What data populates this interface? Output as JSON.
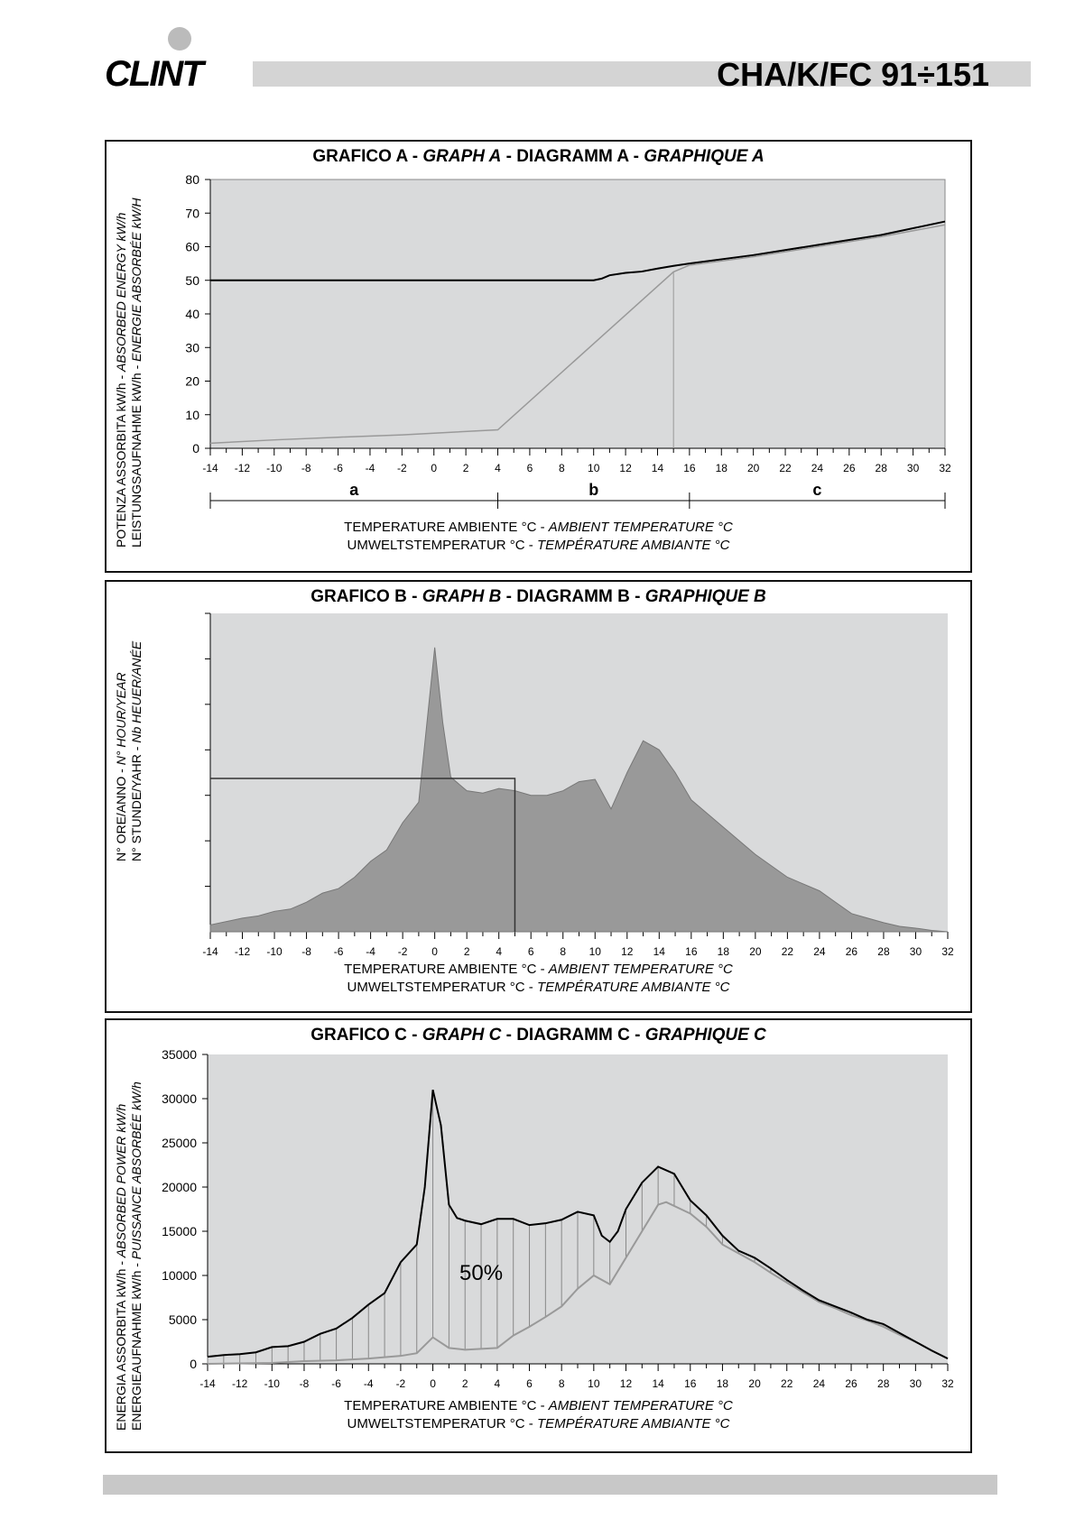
{
  "header": {
    "brand": "CLINT",
    "model": "CHA/K/FC   91÷151"
  },
  "graphA": {
    "title": [
      "GRAFICO A - ",
      "GRAPH A",
      " - DIAGRAMM  A - ",
      "GRAPHIQUE A"
    ],
    "ylabel1": [
      "POTENZA ASSORBITA kW/h - ",
      "ABSORBED ENERGY kW/h"
    ],
    "ylabel2": [
      "LEISTUNGSAUFNAHME kW/h - ",
      "ENERGIE ABSORBÉE kW/H"
    ],
    "xlabel1": [
      "TEMPERATURE AMBIENTE °C - ",
      "AMBIENT TEMPERATURE °C"
    ],
    "xlabel2": [
      "UMWELTSTEMPERATUR °C - ",
      "TEMPÉRATURE AMBIANTE °C"
    ]
  },
  "graphB": {
    "title": [
      "GRAFICO B - ",
      "GRAPH B",
      " - DIAGRAMM  B - ",
      "GRAPHIQUE B"
    ],
    "ylabel1": [
      "N° ORE/ANNO - ",
      "N° HOUR/YEAR"
    ],
    "ylabel2": [
      "N° STUNDE/YAHR - ",
      "Nb HEUER/ANÉE"
    ],
    "xlabel1": [
      "TEMPERATURE AMBIENTE °C - ",
      "AMBIENT TEMPERATURE °C"
    ],
    "xlabel2": [
      "UMWELTSTEMPERATUR °C - ",
      "TEMPÉRATURE AMBIANTE °C"
    ]
  },
  "graphC": {
    "title": [
      "GRAFICO C - ",
      "GRAPH C",
      " - DIAGRAMM  C - ",
      "GRAPHIQUE C"
    ],
    "ylabel1": [
      "ENERGIA ASSORBITA kW/h - ",
      "ABSORBED POWER kW/h"
    ],
    "ylabel2": [
      "ENERGIEAUFNAHME kW/h - ",
      "PUISSANCE ABSORBÉE kW/h"
    ],
    "xlabel1": [
      "TEMPERATURE AMBIENTE °C - ",
      "AMBIENT TEMPERATURE °C"
    ],
    "xlabel2": [
      "UMWELTSTEMPERATUR °C - ",
      "TEMPÉRATURE AMBIANTE °C"
    ]
  },
  "chart_data": [
    {
      "type": "line",
      "title": "GRAFICO A - GRAPH A - DIAGRAMM A - GRAPHIQUE A",
      "xlim": [
        -14,
        32
      ],
      "ylim": [
        0,
        80
      ],
      "xticks": [
        -14,
        -12,
        -10,
        -8,
        -6,
        -4,
        -2,
        0,
        2,
        4,
        6,
        8,
        10,
        12,
        14,
        16,
        18,
        20,
        22,
        24,
        26,
        28,
        30,
        32
      ],
      "yticks": [
        0,
        10,
        20,
        30,
        40,
        50,
        60,
        70,
        80
      ],
      "series": [
        {
          "name": "black",
          "color": "#000000",
          "points": [
            [
              -14,
              50
            ],
            [
              10,
              50
            ],
            [
              10.5,
              50.5
            ],
            [
              11,
              51.5
            ],
            [
              12,
              52.2
            ],
            [
              13,
              52.6
            ],
            [
              14,
              53.5
            ],
            [
              15,
              54.3
            ],
            [
              16,
              55
            ],
            [
              20,
              57.5
            ],
            [
              24,
              60.5
            ],
            [
              26,
              62
            ],
            [
              28,
              63.5
            ],
            [
              32,
              67.5
            ]
          ]
        },
        {
          "name": "gray",
          "color": "#999999",
          "points": [
            [
              -14,
              1.5
            ],
            [
              -10,
              2.5
            ],
            [
              -6,
              3.3
            ],
            [
              -2,
              4
            ],
            [
              0,
              4.5
            ],
            [
              4,
              5.5
            ],
            [
              15,
              52.5
            ],
            [
              16,
              54.5
            ],
            [
              20,
              57
            ],
            [
              24,
              60
            ],
            [
              28,
              63
            ],
            [
              32,
              66.5
            ]
          ]
        }
      ],
      "marker_x": 15,
      "ranges": [
        {
          "label": "a",
          "from": -14,
          "to": 4
        },
        {
          "label": "b",
          "from": 4,
          "to": 16
        },
        {
          "label": "c",
          "from": 16,
          "to": 32
        }
      ]
    },
    {
      "type": "area",
      "title": "GRAFICO B - GRAPH B - DIAGRAMM B - GRAPHIQUE B",
      "xlim": [
        -14,
        32
      ],
      "ylim": [
        0,
        7
      ],
      "xticks": [
        -14,
        -12,
        -10,
        -8,
        -6,
        -4,
        -2,
        0,
        2,
        4,
        6,
        8,
        10,
        12,
        14,
        16,
        18,
        20,
        22,
        24,
        26,
        28,
        30,
        32
      ],
      "yticks": [
        1,
        2,
        3,
        4,
        5,
        6,
        7
      ],
      "points": [
        [
          -14,
          0.15
        ],
        [
          -12,
          0.3
        ],
        [
          -11,
          0.35
        ],
        [
          -10,
          0.45
        ],
        [
          -9,
          0.5
        ],
        [
          -8,
          0.65
        ],
        [
          -7,
          0.85
        ],
        [
          -6,
          0.95
        ],
        [
          -5,
          1.2
        ],
        [
          -4,
          1.55
        ],
        [
          -3,
          1.8
        ],
        [
          -2,
          2.4
        ],
        [
          -1,
          2.85
        ],
        [
          0,
          6.25
        ],
        [
          0.5,
          4.6
        ],
        [
          1,
          3.4
        ],
        [
          2,
          3.1
        ],
        [
          3,
          3.05
        ],
        [
          4,
          3.15
        ],
        [
          5,
          3.1
        ],
        [
          6,
          3.0
        ],
        [
          7,
          3.0
        ],
        [
          8,
          3.1
        ],
        [
          9,
          3.3
        ],
        [
          10,
          3.35
        ],
        [
          11,
          2.7
        ],
        [
          12,
          3.5
        ],
        [
          13,
          4.2
        ],
        [
          14,
          4.0
        ],
        [
          15,
          3.5
        ],
        [
          16,
          2.9
        ],
        [
          17,
          2.6
        ],
        [
          18,
          2.3
        ],
        [
          19,
          2.0
        ],
        [
          20,
          1.7
        ],
        [
          21,
          1.45
        ],
        [
          22,
          1.2
        ],
        [
          23,
          1.05
        ],
        [
          24,
          0.9
        ],
        [
          25,
          0.65
        ],
        [
          26,
          0.4
        ],
        [
          27,
          0.3
        ],
        [
          28,
          0.2
        ],
        [
          29,
          0.12
        ],
        [
          30,
          0.08
        ],
        [
          31,
          0.03
        ],
        [
          32,
          0
        ]
      ],
      "rect_line": {
        "x": 5,
        "y": 3.37
      },
      "color": "#999999"
    },
    {
      "type": "line",
      "title": "GRAFICO C - GRAPH C - DIAGRAMM C - GRAPHIQUE C",
      "xlim": [
        -14,
        32
      ],
      "ylim": [
        0,
        35000
      ],
      "xticks": [
        -14,
        -12,
        -10,
        -8,
        -6,
        -4,
        -2,
        0,
        2,
        4,
        6,
        8,
        10,
        12,
        14,
        16,
        18,
        20,
        22,
        24,
        26,
        28,
        30,
        32
      ],
      "yticks": [
        0,
        5000,
        10000,
        15000,
        20000,
        25000,
        30000,
        35000
      ],
      "annotation": "50%",
      "series": [
        {
          "name": "black",
          "color": "#000000",
          "points": [
            [
              -14,
              800
            ],
            [
              -13,
              1000
            ],
            [
              -12,
              1100
            ],
            [
              -11,
              1300
            ],
            [
              -10,
              1900
            ],
            [
              -9,
              2000
            ],
            [
              -8,
              2500
            ],
            [
              -7,
              3400
            ],
            [
              -6,
              4000
            ],
            [
              -5,
              5200
            ],
            [
              -4,
              6700
            ],
            [
              -3,
              8000
            ],
            [
              -2,
              11500
            ],
            [
              -1,
              13500
            ],
            [
              -0.5,
              20000
            ],
            [
              0,
              31000
            ],
            [
              0.5,
              27000
            ],
            [
              1,
              18000
            ],
            [
              1.5,
              16500
            ],
            [
              2,
              16200
            ],
            [
              3,
              15800
            ],
            [
              4,
              16400
            ],
            [
              5,
              16400
            ],
            [
              6,
              15700
            ],
            [
              7,
              15900
            ],
            [
              8,
              16300
            ],
            [
              9,
              17200
            ],
            [
              10,
              16800
            ],
            [
              10.5,
              14500
            ],
            [
              11,
              13800
            ],
            [
              11.5,
              15000
            ],
            [
              12,
              17500
            ],
            [
              13,
              20500
            ],
            [
              14,
              22300
            ],
            [
              15,
              21500
            ],
            [
              16,
              18500
            ],
            [
              17,
              16800
            ],
            [
              18,
              14500
            ],
            [
              19,
              12800
            ],
            [
              20,
              12000
            ],
            [
              21,
              10800
            ],
            [
              22,
              9500
            ],
            [
              23,
              8300
            ],
            [
              24,
              7200
            ],
            [
              25,
              6500
            ],
            [
              26,
              5800
            ],
            [
              27,
              5000
            ],
            [
              28,
              4500
            ],
            [
              29,
              3500
            ],
            [
              30,
              2500
            ],
            [
              31,
              1500
            ],
            [
              32,
              600
            ]
          ]
        },
        {
          "name": "gray",
          "color": "#999999",
          "points": [
            [
              -14,
              0
            ],
            [
              -10,
              100
            ],
            [
              -8,
              300
            ],
            [
              -6,
              400
            ],
            [
              -4,
              600
            ],
            [
              -2,
              900
            ],
            [
              -1,
              1200
            ],
            [
              0,
              3000
            ],
            [
              1,
              1800
            ],
            [
              2,
              1600
            ],
            [
              3,
              1700
            ],
            [
              4,
              1800
            ],
            [
              5,
              3200
            ],
            [
              6,
              4200
            ],
            [
              7,
              5300
            ],
            [
              8,
              6500
            ],
            [
              9,
              8500
            ],
            [
              10,
              10000
            ],
            [
              11,
              9000
            ],
            [
              12,
              12000
            ],
            [
              13,
              15000
            ],
            [
              14,
              18000
            ],
            [
              14.5,
              18300
            ],
            [
              16,
              17000
            ],
            [
              17,
              15500
            ],
            [
              18,
              13500
            ],
            [
              19,
              12500
            ],
            [
              20,
              11500
            ],
            [
              21,
              10300
            ],
            [
              22,
              9200
            ],
            [
              23,
              8100
            ],
            [
              24,
              7000
            ],
            [
              25,
              6300
            ],
            [
              26,
              5500
            ],
            [
              27,
              4900
            ],
            [
              28,
              4200
            ],
            [
              29,
              3300
            ],
            [
              30,
              2500
            ],
            [
              31,
              1500
            ],
            [
              32,
              600
            ]
          ]
        }
      ]
    }
  ]
}
